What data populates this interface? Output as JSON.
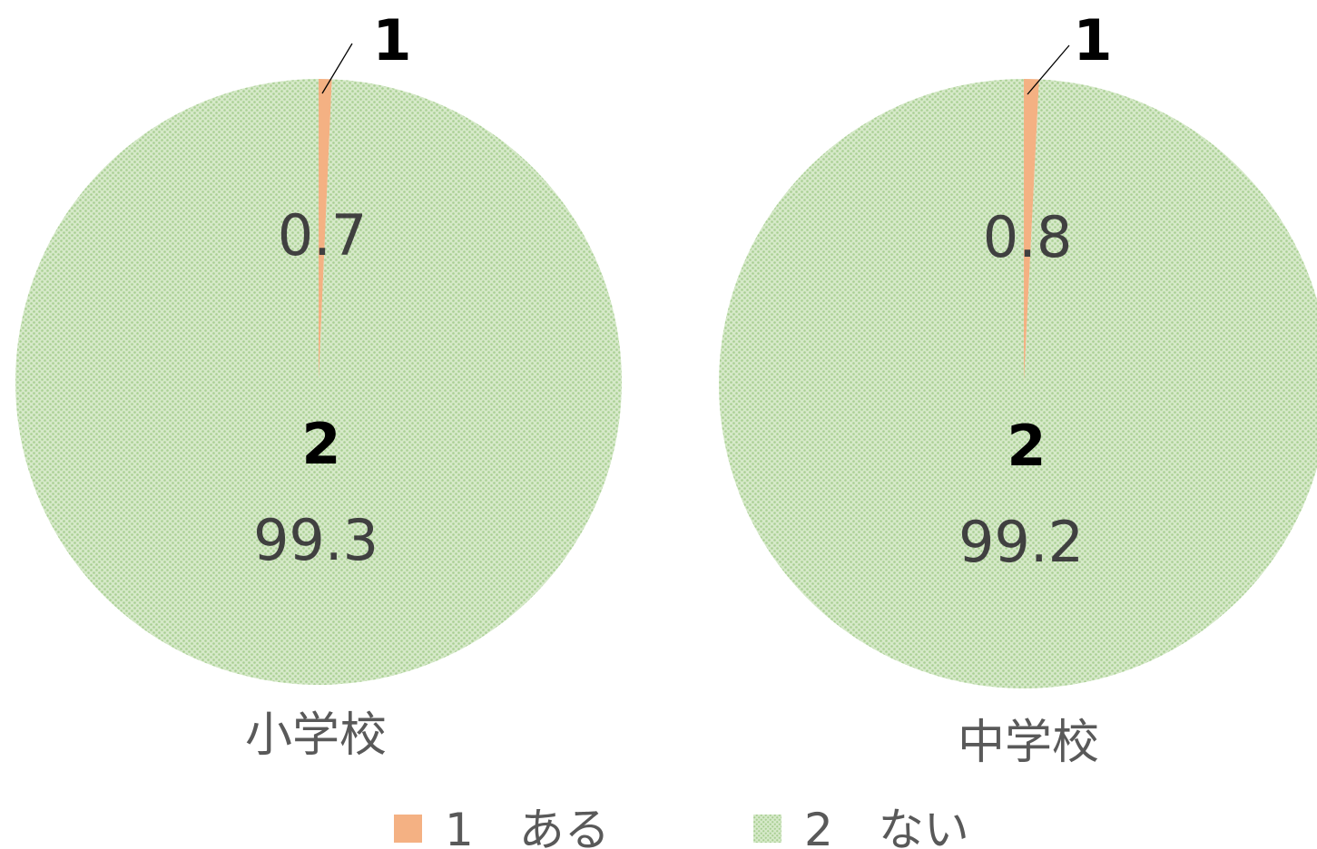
{
  "chart_data": [
    {
      "type": "pie",
      "title": "小学校",
      "categories": [
        "1",
        "2"
      ],
      "values": [
        0.7,
        99.3
      ]
    },
    {
      "type": "pie",
      "title": "中学校",
      "categories": [
        "1",
        "2"
      ],
      "values": [
        0.8,
        99.2
      ]
    }
  ],
  "legend": {
    "position": "bottom",
    "items": [
      {
        "label": "1　ある",
        "color": "#F4B183",
        "pattern": "solid"
      },
      {
        "label": "2　ない",
        "color": "#C5E0B4",
        "pattern": "dotted"
      }
    ]
  },
  "colors": {
    "slice_1": "#F4B183",
    "slice_2": "#C5E0B4",
    "value_text": "#404040",
    "title_text": "#595959"
  }
}
